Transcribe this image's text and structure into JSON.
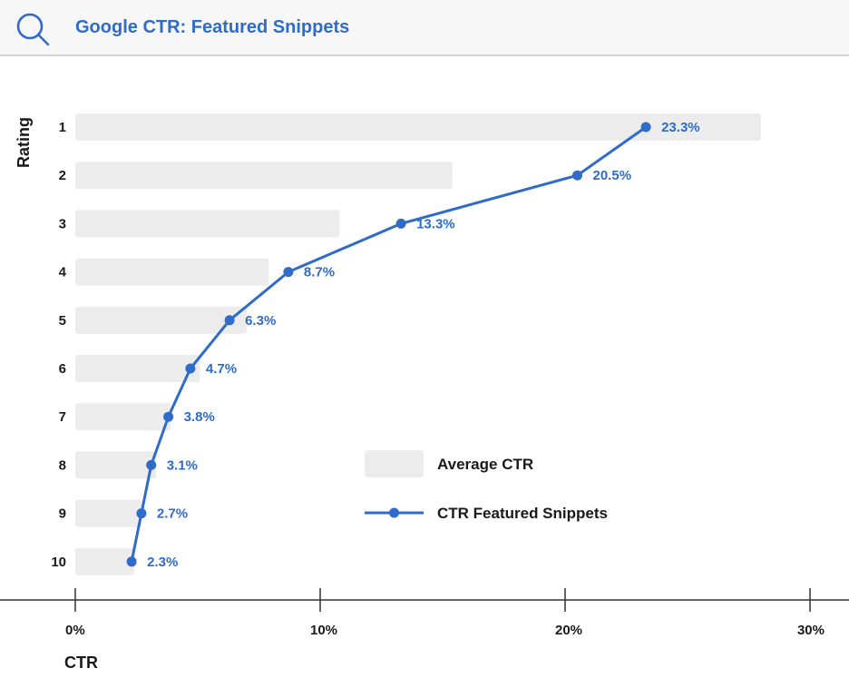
{
  "header": {
    "title": "Google CTR: Featured Snippets",
    "icon": "search-icon"
  },
  "colors": {
    "accent": "#2f6bc9",
    "bar": "#ececec",
    "axis": "#333333",
    "text": "#1a1a1a"
  },
  "chart_data": {
    "type": "bar",
    "orientation": "horizontal",
    "categories": [
      "1",
      "2",
      "3",
      "4",
      "5",
      "6",
      "7",
      "8",
      "9",
      "10"
    ],
    "series": [
      {
        "name": "Average CTR",
        "type": "bar",
        "values": [
          28.0,
          15.4,
          10.8,
          7.9,
          7.0,
          5.1,
          3.9,
          3.3,
          2.7,
          2.4
        ]
      },
      {
        "name": "CTR Featured Snippets",
        "type": "line",
        "values": [
          23.3,
          20.5,
          13.3,
          8.7,
          6.3,
          4.7,
          3.8,
          3.1,
          2.7,
          2.3
        ],
        "labels": [
          "23.3%",
          "20.5%",
          "13.3%",
          "8.7%",
          "6.3%",
          "4.7%",
          "3.8%",
          "3.1%",
          "2.7%",
          "2.3%"
        ]
      }
    ],
    "xlabel": "CTR",
    "ylabel": "Rating",
    "xlim": [
      0,
      30
    ],
    "xticks": [
      "0%",
      "10%",
      "20%",
      "30%"
    ],
    "legend": [
      "Average CTR",
      "CTR Featured Snippets"
    ],
    "legend_position": "right-center",
    "grid": false
  }
}
